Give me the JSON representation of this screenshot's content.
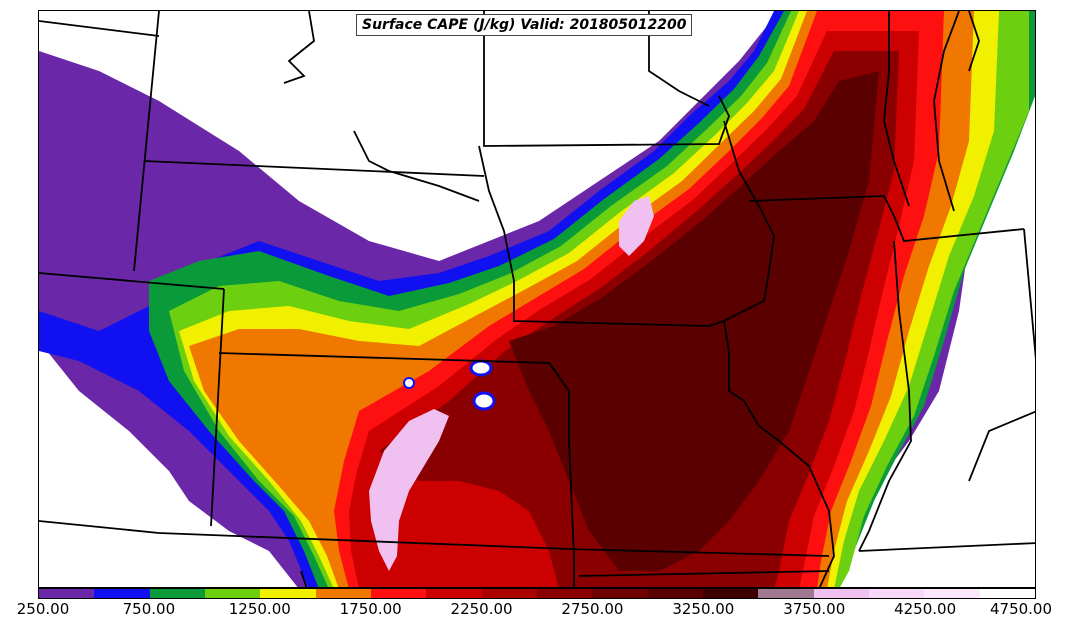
{
  "title": "Surface CAPE (J/kg) Valid: 201805012200",
  "field": "Surface CAPE",
  "units": "J/kg",
  "valid_time": "201805012200",
  "colorbar": {
    "min": 250,
    "max": 4750,
    "interval": 250,
    "tick_labels": [
      "250.00",
      "750.00",
      "1250.00",
      "1750.00",
      "2250.00",
      "2750.00",
      "3250.00",
      "3750.00",
      "4250.00",
      "4750.00"
    ],
    "colors": [
      "#6a28a8",
      "#1010f0",
      "#0a9a3a",
      "#6cd010",
      "#f0f000",
      "#f07800",
      "#ff1010",
      "#cc0000",
      "#aa0000",
      "#8a0000",
      "#700000",
      "#5a0000",
      "#3c0000",
      "#a07890",
      "#f0c0f0",
      "#f8d8f8",
      "#fce8fc",
      "#ffffff"
    ]
  },
  "map": {
    "region": "Central United States",
    "background": "#ffffff",
    "boundary_color": "#000000"
  }
}
